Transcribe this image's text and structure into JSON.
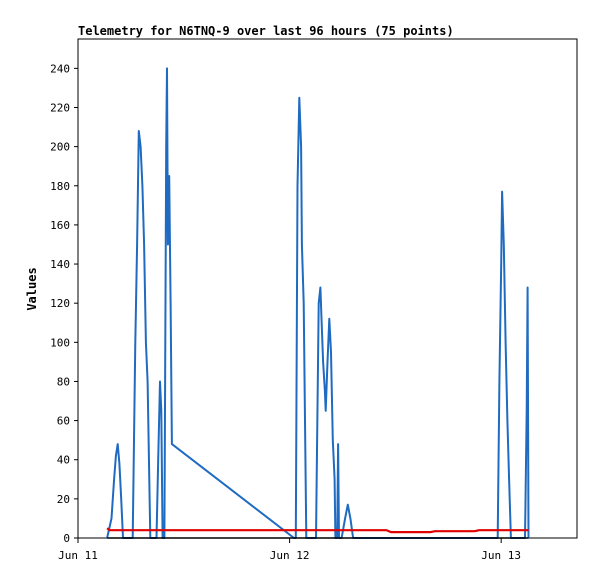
{
  "chart_data": {
    "type": "line",
    "title": "Telemetry for N6TNQ-9 over last 96 hours (75 points)",
    "xlabel": "",
    "ylabel": "Values",
    "x_ticks": [
      {
        "label": "Jun 11",
        "hours": 0
      },
      {
        "label": "Jun 12",
        "hours": 24
      },
      {
        "label": "Jun 13",
        "hours": 48
      }
    ],
    "xlim_hours": [
      0,
      56.6
    ],
    "ylim": [
      0,
      255
    ],
    "y_ticks": [
      0,
      20,
      40,
      60,
      80,
      100,
      120,
      140,
      160,
      180,
      200,
      220,
      240
    ],
    "grid": false,
    "legend": "none",
    "series": [
      {
        "color": "#1f6bc1",
        "points": [
          [
            3.3,
            0
          ],
          [
            3.8,
            10
          ],
          [
            4.1,
            30
          ],
          [
            4.3,
            42
          ],
          [
            4.5,
            48
          ],
          [
            4.7,
            38
          ],
          [
            4.9,
            20
          ],
          [
            5.1,
            0
          ],
          [
            6.2,
            0
          ],
          [
            6.5,
            100
          ],
          [
            6.7,
            150
          ],
          [
            6.9,
            208
          ],
          [
            7.1,
            200
          ],
          [
            7.3,
            180
          ],
          [
            7.5,
            150
          ],
          [
            7.7,
            100
          ],
          [
            7.9,
            80
          ],
          [
            8.2,
            0
          ],
          [
            8.9,
            0
          ],
          [
            9.1,
            40
          ],
          [
            9.3,
            80
          ],
          [
            9.45,
            65
          ],
          [
            9.6,
            0
          ],
          [
            9.8,
            0
          ],
          [
            10.0,
            200
          ],
          [
            10.1,
            240
          ],
          [
            10.2,
            150
          ],
          [
            10.35,
            185
          ],
          [
            10.5,
            120
          ],
          [
            10.65,
            48
          ],
          [
            24.5,
            0
          ],
          [
            24.7,
            0
          ],
          [
            24.9,
            180
          ],
          [
            25.1,
            225
          ],
          [
            25.3,
            200
          ],
          [
            25.4,
            150
          ],
          [
            25.6,
            120
          ],
          [
            25.9,
            0
          ],
          [
            27.0,
            0
          ],
          [
            27.3,
            120
          ],
          [
            27.5,
            128
          ],
          [
            27.6,
            115
          ],
          [
            27.8,
            90
          ],
          [
            28.0,
            75
          ],
          [
            28.1,
            65
          ],
          [
            28.3,
            90
          ],
          [
            28.5,
            112
          ],
          [
            28.7,
            95
          ],
          [
            28.9,
            50
          ],
          [
            29.1,
            30
          ],
          [
            29.2,
            0
          ],
          [
            29.4,
            0
          ],
          [
            29.5,
            48
          ],
          [
            29.6,
            0
          ],
          [
            29.9,
            0
          ],
          [
            30.3,
            10
          ],
          [
            30.6,
            17
          ],
          [
            30.9,
            10
          ],
          [
            31.2,
            0
          ],
          [
            47.6,
            0
          ],
          [
            47.8,
            80
          ],
          [
            48.0,
            140
          ],
          [
            48.1,
            177
          ],
          [
            48.3,
            150
          ],
          [
            48.5,
            100
          ],
          [
            48.7,
            60
          ],
          [
            48.9,
            30
          ],
          [
            49.1,
            0
          ],
          [
            50.7,
            0
          ],
          [
            50.9,
            65
          ],
          [
            51.0,
            128
          ],
          [
            51.1,
            0
          ]
        ]
      },
      {
        "color": "#e00000",
        "points": [
          [
            3.3,
            5
          ],
          [
            3.6,
            4
          ],
          [
            13,
            4
          ],
          [
            20,
            4
          ],
          [
            28,
            4
          ],
          [
            35,
            4
          ],
          [
            35.5,
            3
          ],
          [
            40,
            3
          ],
          [
            40.5,
            3.5
          ],
          [
            45,
            3.5
          ],
          [
            45.5,
            4
          ],
          [
            50,
            4
          ],
          [
            51.1,
            4
          ]
        ]
      },
      {
        "color": "#000000",
        "points": [
          [
            3.3,
            0
          ],
          [
            51.1,
            0
          ]
        ]
      }
    ]
  }
}
